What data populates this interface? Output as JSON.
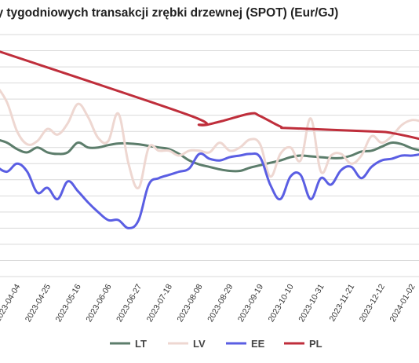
{
  "chart_data": {
    "type": "line",
    "title": "ny tygodniowych transakcji zrębki drzewnej (SPOT) (Eur/GJ)",
    "xlabel": "",
    "ylabel": "",
    "x_ticks": [
      "2023-04-04",
      "2023-04-25",
      "2023-05-16",
      "2023-06-06",
      "2023-06-27",
      "2023-07-18",
      "2023-08-08",
      "2023-08-29",
      "2023-09-19",
      "2023-10-10",
      "2023-10-31",
      "2023-11-21",
      "2023-12-12",
      "2024-01-02"
    ],
    "x_range": [
      "2023-03-21",
      "2024-01-09"
    ],
    "ylim": [
      0,
      15
    ],
    "grid": true,
    "legend_position": "bottom",
    "series": [
      {
        "name": "LT",
        "color": "#5c7d6b",
        "points": [
          [
            "2023-03-21",
            8.5
          ],
          [
            "2023-03-28",
            8.3
          ],
          [
            "2023-04-04",
            7.9
          ],
          [
            "2023-04-11",
            7.7
          ],
          [
            "2023-04-18",
            8.0
          ],
          [
            "2023-04-25",
            7.7
          ],
          [
            "2023-05-02",
            7.6
          ],
          [
            "2023-05-09",
            7.7
          ],
          [
            "2023-05-16",
            8.3
          ],
          [
            "2023-05-23",
            8.0
          ],
          [
            "2023-05-30",
            8.0
          ],
          [
            "2023-06-06",
            8.15
          ],
          [
            "2023-06-13",
            8.25
          ],
          [
            "2023-06-20",
            8.25
          ],
          [
            "2023-06-27",
            8.2
          ],
          [
            "2023-07-04",
            8.1
          ],
          [
            "2023-07-11",
            8.0
          ],
          [
            "2023-07-18",
            7.9
          ],
          [
            "2023-07-25",
            7.6
          ],
          [
            "2023-08-01",
            7.2
          ],
          [
            "2023-08-08",
            6.95
          ],
          [
            "2023-08-15",
            6.8
          ],
          [
            "2023-08-22",
            6.65
          ],
          [
            "2023-08-29",
            6.55
          ],
          [
            "2023-09-05",
            6.55
          ],
          [
            "2023-09-12",
            6.75
          ],
          [
            "2023-09-19",
            6.9
          ],
          [
            "2023-09-26",
            7.05
          ],
          [
            "2023-10-03",
            7.2
          ],
          [
            "2023-10-10",
            7.4
          ],
          [
            "2023-10-17",
            7.5
          ],
          [
            "2023-10-24",
            7.45
          ],
          [
            "2023-10-31",
            7.4
          ],
          [
            "2023-11-07",
            7.35
          ],
          [
            "2023-11-14",
            7.35
          ],
          [
            "2023-11-21",
            7.5
          ],
          [
            "2023-11-28",
            7.75
          ],
          [
            "2023-12-05",
            7.8
          ],
          [
            "2023-12-12",
            8.05
          ],
          [
            "2023-12-19",
            8.3
          ],
          [
            "2023-12-26",
            8.2
          ],
          [
            "2024-01-02",
            7.95
          ],
          [
            "2024-01-09",
            7.8
          ]
        ]
      },
      {
        "name": "LV",
        "color": "#eed7d1",
        "points": [
          [
            "2023-03-21",
            11.8
          ],
          [
            "2023-03-28",
            10.8
          ],
          [
            "2023-04-04",
            9.0
          ],
          [
            "2023-04-11",
            8.2
          ],
          [
            "2023-04-18",
            8.4
          ],
          [
            "2023-04-25",
            9.15
          ],
          [
            "2023-05-02",
            8.8
          ],
          [
            "2023-05-09",
            9.5
          ],
          [
            "2023-05-16",
            10.7
          ],
          [
            "2023-05-23",
            9.9
          ],
          [
            "2023-05-30",
            8.6
          ],
          [
            "2023-06-06",
            8.4
          ],
          [
            "2023-06-13",
            10.1
          ],
          [
            "2023-06-20",
            7.0
          ],
          [
            "2023-06-27",
            5.5
          ],
          [
            "2023-07-04",
            8.0
          ],
          [
            "2023-07-11",
            7.8
          ],
          [
            "2023-07-18",
            7.8
          ],
          [
            "2023-07-25",
            7.5
          ],
          [
            "2023-08-01",
            7.8
          ],
          [
            "2023-08-08",
            7.8
          ],
          [
            "2023-08-15",
            7.7
          ],
          [
            "2023-08-22",
            8.3
          ],
          [
            "2023-08-29",
            7.8
          ],
          [
            "2023-09-05",
            8.0
          ],
          [
            "2023-09-12",
            8.5
          ],
          [
            "2023-09-19",
            8.2
          ],
          [
            "2023-09-26",
            6.2
          ],
          [
            "2023-10-03",
            7.6
          ],
          [
            "2023-10-10",
            8.0
          ],
          [
            "2023-10-17",
            7.2
          ],
          [
            "2023-10-24",
            9.8
          ],
          [
            "2023-10-31",
            6.5
          ],
          [
            "2023-11-07",
            7.5
          ],
          [
            "2023-11-14",
            7.6
          ],
          [
            "2023-11-21",
            7.0
          ],
          [
            "2023-11-28",
            7.5
          ],
          [
            "2023-12-05",
            8.7
          ],
          [
            "2023-12-12",
            8.3
          ],
          [
            "2023-12-19",
            8.7
          ],
          [
            "2023-12-26",
            9.4
          ],
          [
            "2024-01-02",
            9.7
          ],
          [
            "2024-01-09",
            9.6
          ]
        ]
      },
      {
        "name": "EE",
        "color": "#5a5ee3",
        "points": [
          [
            "2023-03-21",
            6.8
          ],
          [
            "2023-03-28",
            6.5
          ],
          [
            "2023-04-04",
            7.0
          ],
          [
            "2023-04-11",
            6.5
          ],
          [
            "2023-04-18",
            5.2
          ],
          [
            "2023-04-25",
            5.5
          ],
          [
            "2023-05-02",
            4.8
          ],
          [
            "2023-05-09",
            5.9
          ],
          [
            "2023-05-16",
            5.3
          ],
          [
            "2023-05-23",
            4.6
          ],
          [
            "2023-05-30",
            4.0
          ],
          [
            "2023-06-06",
            3.5
          ],
          [
            "2023-06-13",
            3.5
          ],
          [
            "2023-06-20",
            3.0
          ],
          [
            "2023-06-27",
            3.5
          ],
          [
            "2023-07-04",
            5.7
          ],
          [
            "2023-07-11",
            6.1
          ],
          [
            "2023-07-18",
            6.3
          ],
          [
            "2023-07-25",
            6.5
          ],
          [
            "2023-08-01",
            6.7
          ],
          [
            "2023-08-08",
            7.6
          ],
          [
            "2023-08-15",
            7.3
          ],
          [
            "2023-08-22",
            7.2
          ],
          [
            "2023-08-29",
            7.4
          ],
          [
            "2023-09-05",
            7.5
          ],
          [
            "2023-09-12",
            7.6
          ],
          [
            "2023-09-19",
            7.4
          ],
          [
            "2023-09-26",
            5.7
          ],
          [
            "2023-10-03",
            4.8
          ],
          [
            "2023-10-10",
            6.2
          ],
          [
            "2023-10-17",
            6.3
          ],
          [
            "2023-10-24",
            4.8
          ],
          [
            "2023-10-31",
            6.1
          ],
          [
            "2023-11-07",
            5.7
          ],
          [
            "2023-11-14",
            6.6
          ],
          [
            "2023-11-21",
            6.8
          ],
          [
            "2023-11-28",
            6.1
          ],
          [
            "2023-12-05",
            6.8
          ],
          [
            "2023-12-12",
            7.2
          ],
          [
            "2023-12-19",
            7.3
          ],
          [
            "2023-12-26",
            7.5
          ],
          [
            "2024-01-02",
            7.5
          ],
          [
            "2024-01-09",
            7.6
          ]
        ]
      },
      {
        "name": "PL",
        "color": "#bf2e3b",
        "points": [
          [
            "2023-03-21",
            14.0
          ],
          [
            "2023-08-01",
            10.0
          ],
          [
            "2023-08-08",
            9.4
          ],
          [
            "2023-08-22",
            9.6
          ],
          [
            "2023-09-12",
            10.1
          ],
          [
            "2023-09-19",
            9.95
          ],
          [
            "2023-10-03",
            9.3
          ],
          [
            "2023-10-10",
            9.2
          ],
          [
            "2023-12-05",
            9.0
          ],
          [
            "2023-12-19",
            8.9
          ],
          [
            "2024-01-09",
            8.5
          ]
        ]
      }
    ]
  }
}
